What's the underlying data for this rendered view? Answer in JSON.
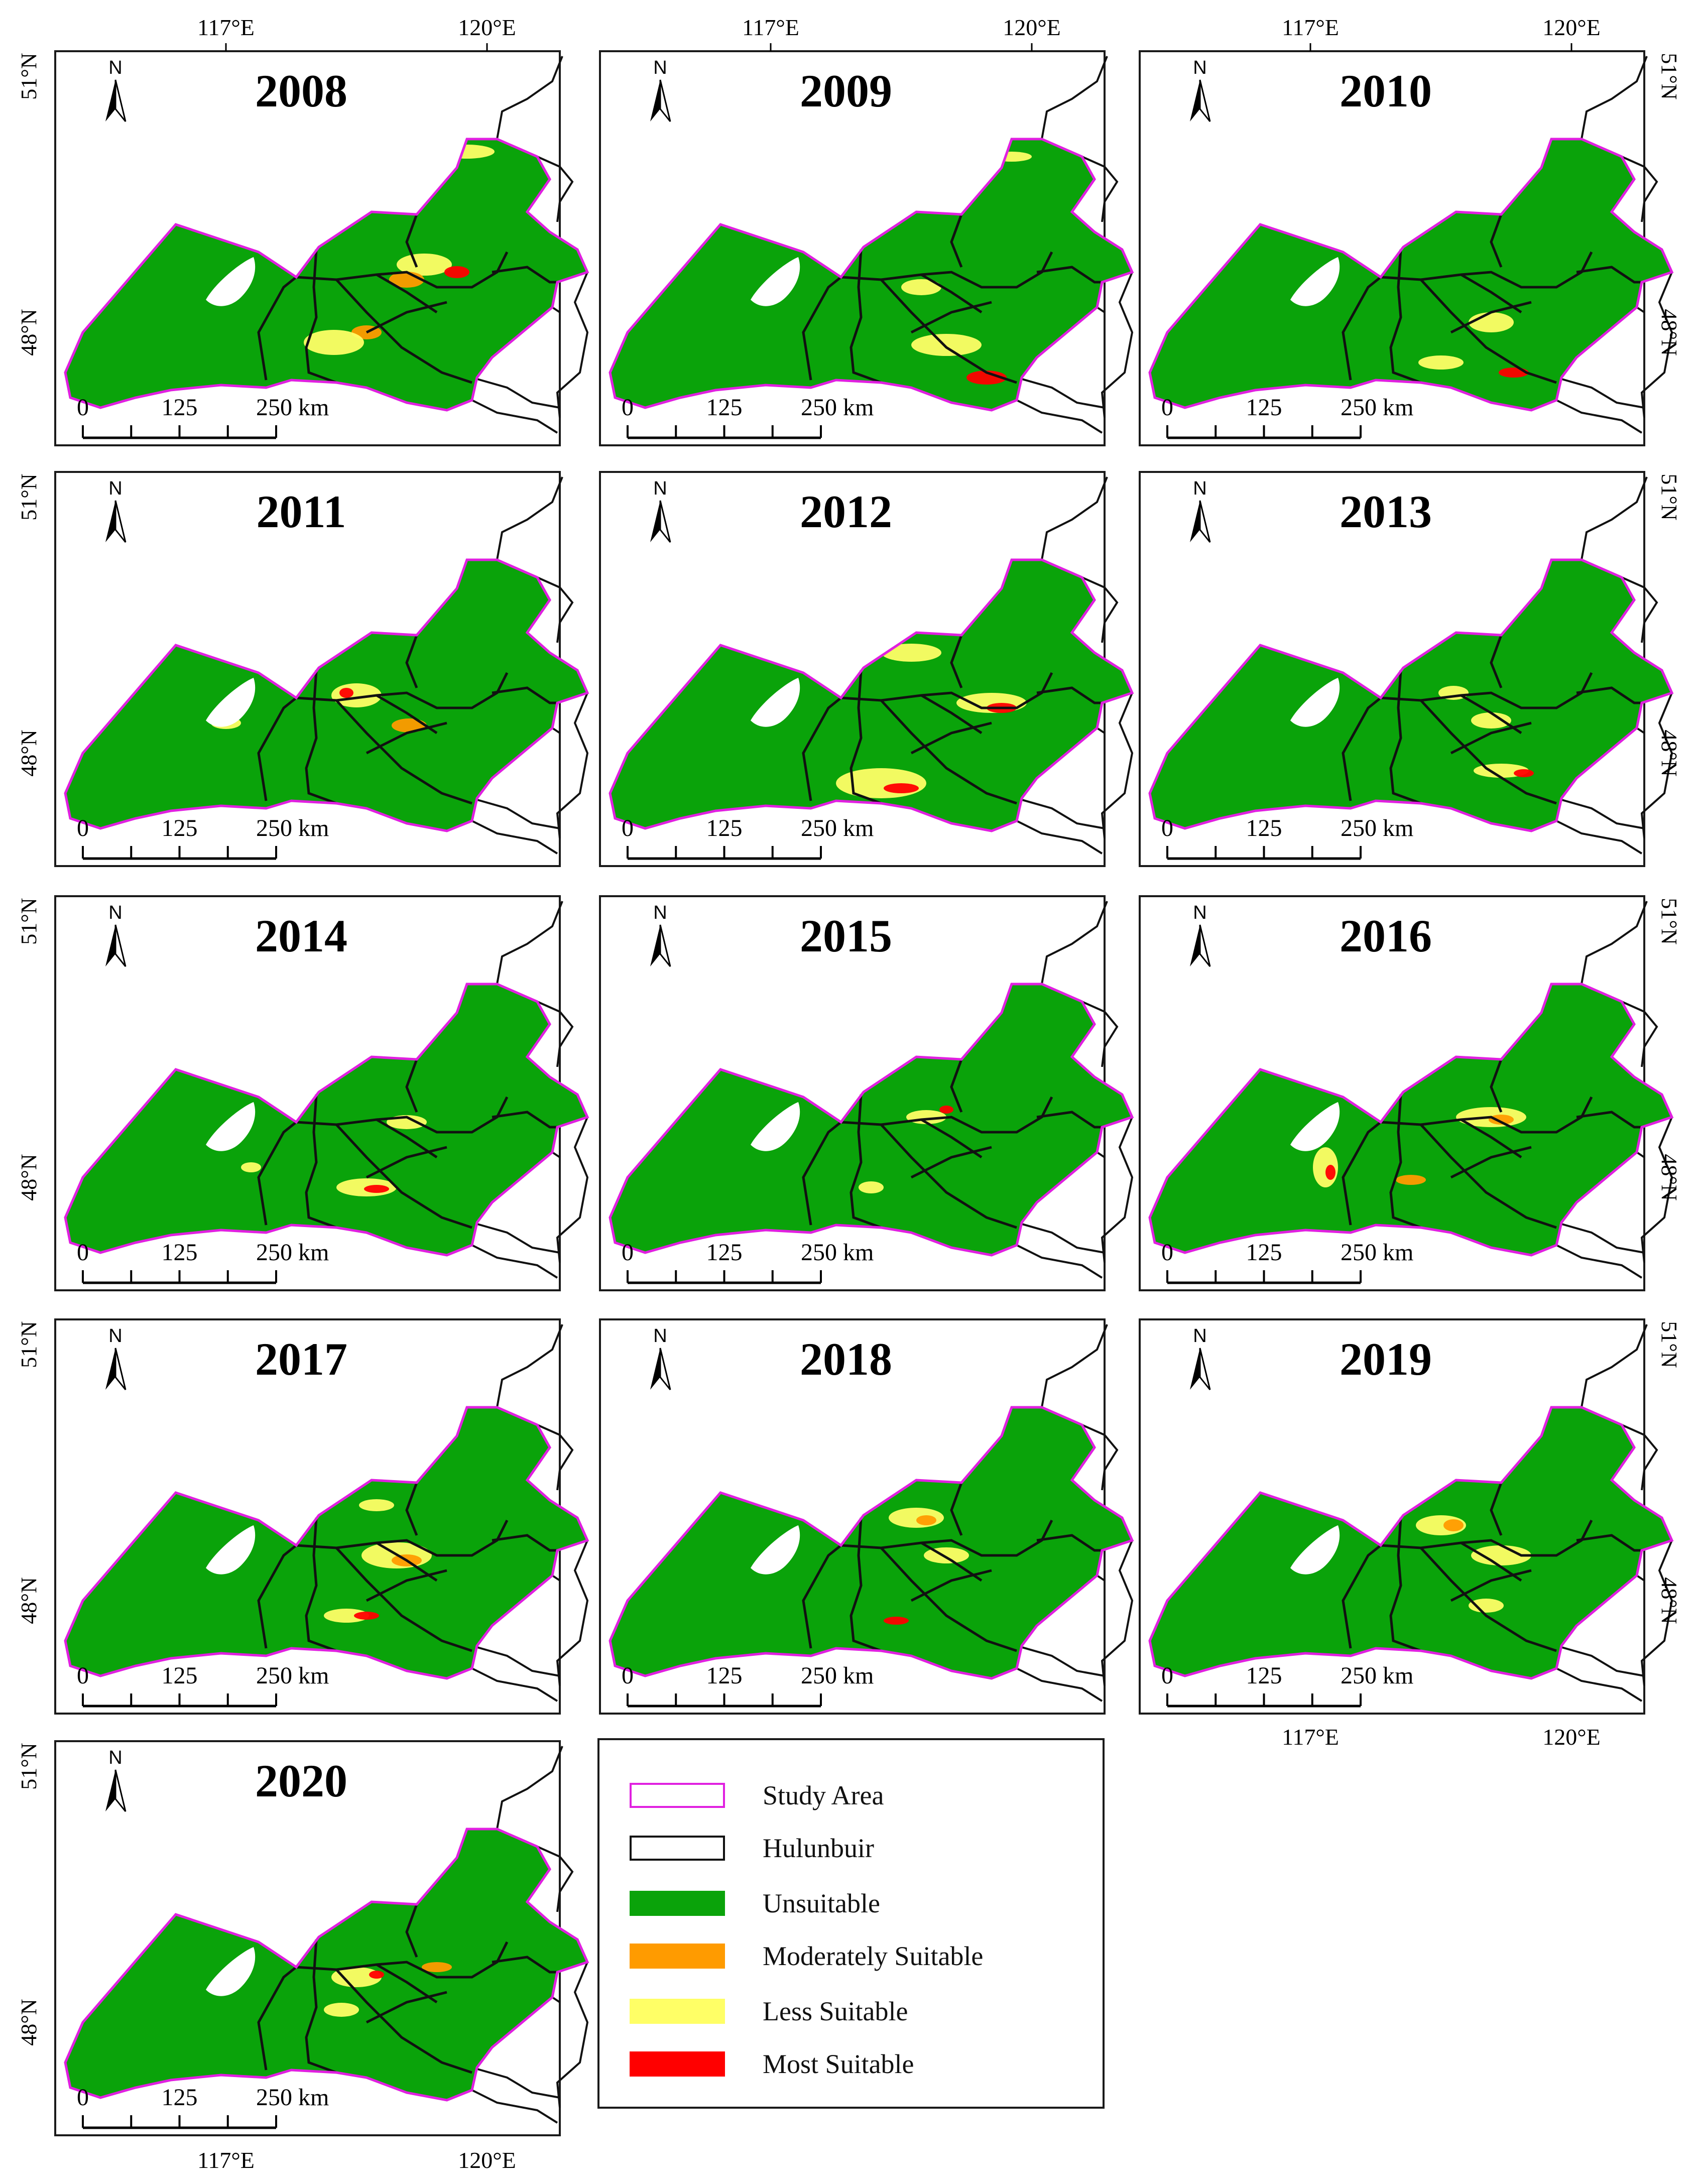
{
  "figure": {
    "panels": [
      {
        "year": "2008"
      },
      {
        "year": "2009"
      },
      {
        "year": "2010"
      },
      {
        "year": "2011"
      },
      {
        "year": "2012"
      },
      {
        "year": "2013"
      },
      {
        "year": "2014"
      },
      {
        "year": "2015"
      },
      {
        "year": "2016"
      },
      {
        "year": "2017"
      },
      {
        "year": "2018"
      },
      {
        "year": "2019"
      },
      {
        "year": "2020"
      }
    ],
    "north_arrow_label": "N",
    "scale_bar": {
      "labels": [
        "0",
        "125",
        "250 km"
      ]
    },
    "longitude_ticks": [
      "117°E",
      "120°E"
    ],
    "latitude_ticks": [
      "51°N",
      "48°N"
    ]
  },
  "legend": {
    "items": [
      {
        "label": "Study Area",
        "swatch": "outline",
        "color": "#e020e0"
      },
      {
        "label": "Hulunbuir",
        "swatch": "outline",
        "color": "#111111"
      },
      {
        "label": "Unsuitable",
        "swatch": "fill",
        "color": "#0aa30a"
      },
      {
        "label": "Moderately Suitable",
        "swatch": "fill",
        "color": "#ff9b00"
      },
      {
        "label": "Less Suitable",
        "swatch": "fill",
        "color": "#ffff66"
      },
      {
        "label": "Most Suitable",
        "swatch": "fill",
        "color": "#ff0000"
      }
    ]
  },
  "colors": {
    "study_area": "#e020e0",
    "boundary": "#111111",
    "unsuitable": "#0aa30a",
    "moderately_suitable": "#ff9b00",
    "less_suitable": "#ffff66",
    "most_suitable": "#ff0000",
    "lake": "#ffffff"
  }
}
